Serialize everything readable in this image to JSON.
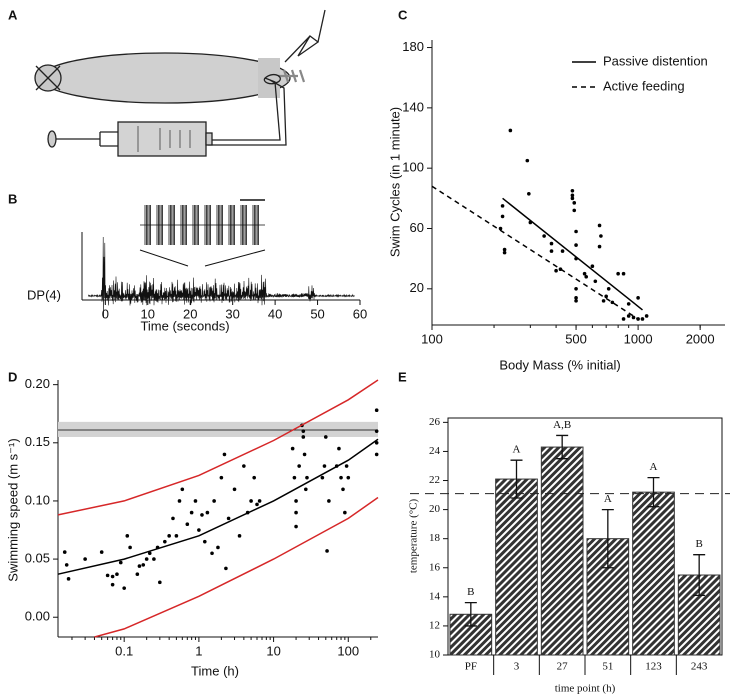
{
  "diagram": {
    "panel": "A"
  },
  "chart_data": [
    {
      "panel": "B",
      "type": "trace",
      "ylabel": "DP(4)",
      "xlabel": "Time (seconds)",
      "xlim": [
        -5.5,
        60
      ],
      "xticks": [
        0,
        10,
        20,
        30,
        40,
        50,
        60
      ]
    },
    {
      "panel": "C",
      "type": "scatter",
      "xscale": "log",
      "xlabel": "Body Mass (% initial)",
      "ylabel": "Swim Cycles (in 1 minute)",
      "xlim": [
        100,
        2640
      ],
      "xticks": [
        100,
        500,
        1000,
        2000
      ],
      "ylim": [
        -4,
        185
      ],
      "yticks": [
        20,
        60,
        100,
        140,
        180
      ],
      "legend": "upper right",
      "series": [
        {
          "kind": "points",
          "color": "#000000",
          "x": [
            240,
            220,
            215,
            225,
            225,
            290,
            295,
            300,
            350,
            380,
            380,
            400,
            420,
            430,
            480,
            480,
            480,
            490,
            490,
            500,
            500,
            500,
            500,
            500,
            500,
            550,
            560,
            600,
            620,
            650,
            660,
            650,
            680,
            700,
            720,
            750,
            800,
            850,
            900,
            900,
            950,
            1000,
            1050,
            1100,
            1000,
            850,
            220
          ],
          "values": [
            125,
            75,
            60,
            46,
            44,
            105,
            83,
            64,
            55,
            50,
            45,
            32,
            33,
            45,
            85,
            82,
            80,
            77,
            72,
            58,
            49,
            40,
            20,
            14,
            12,
            30,
            28,
            35,
            25,
            62,
            55,
            48,
            12,
            15,
            20,
            11,
            30,
            30,
            10,
            2,
            1,
            0,
            0,
            2,
            14,
            0,
            68
          ]
        },
        {
          "kind": "line",
          "name": "Passive distention",
          "color": "#000000",
          "dash": false,
          "x": [
            220,
            1050
          ],
          "values": [
            80,
            6
          ]
        },
        {
          "kind": "line",
          "name": "Active feeding",
          "color": "#000000",
          "dash": true,
          "x": [
            100,
            1000
          ],
          "values": [
            88,
            0
          ]
        }
      ]
    },
    {
      "panel": "D",
      "type": "scatter",
      "xscale": "log",
      "xlabel": "Time (h)",
      "ylabel": "Swimming speed (m s⁻¹)",
      "xlim": [
        0.013,
        250
      ],
      "xticks": [
        0.1,
        1,
        10,
        100
      ],
      "ylim": [
        -0.017,
        0.204
      ],
      "yticks": [
        {
          "value": 0,
          "label": "0.00"
        },
        {
          "value": 0.05,
          "label": "0.05"
        },
        {
          "value": 0.1,
          "label": "0.10"
        },
        {
          "value": 0.15,
          "label": "0.15"
        },
        {
          "value": 0.2,
          "label": "0.20"
        }
      ],
      "band": [
        0.155,
        0.168
      ],
      "band_color": "#d3d3d3",
      "reference": 0.161,
      "series": [
        {
          "kind": "points",
          "color": "#000000",
          "x": [
            0.016,
            0.017,
            0.018,
            0.03,
            0.05,
            0.06,
            0.07,
            0.07,
            0.08,
            0.09,
            0.1,
            0.11,
            0.12,
            0.15,
            0.16,
            0.18,
            0.2,
            0.22,
            0.25,
            0.28,
            0.3,
            0.35,
            0.4,
            0.45,
            0.5,
            0.55,
            0.6,
            0.7,
            0.8,
            0.9,
            1,
            1.1,
            1.2,
            1.3,
            1.5,
            1.6,
            1.8,
            2,
            2.2,
            2.3,
            2.5,
            3,
            3.5,
            4,
            4.5,
            5,
            5.5,
            6,
            6.5,
            18,
            19,
            20,
            20,
            20,
            22,
            24,
            25,
            25,
            26,
            27,
            28,
            45,
            48,
            50,
            52,
            55,
            70,
            75,
            80,
            85,
            90,
            95,
            100,
            240,
            240,
            240,
            240
          ],
          "values": [
            0.056,
            0.045,
            0.033,
            0.05,
            0.056,
            0.036,
            0.035,
            0.028,
            0.037,
            0.047,
            0.025,
            0.07,
            0.06,
            0.037,
            0.044,
            0.045,
            0.05,
            0.055,
            0.05,
            0.06,
            0.03,
            0.065,
            0.07,
            0.085,
            0.07,
            0.1,
            0.11,
            0.08,
            0.09,
            0.1,
            0.075,
            0.088,
            0.065,
            0.09,
            0.055,
            0.1,
            0.06,
            0.12,
            0.14,
            0.042,
            0.085,
            0.11,
            0.07,
            0.13,
            0.09,
            0.1,
            0.12,
            0.097,
            0.1,
            0.145,
            0.12,
            0.09,
            0.078,
            0.1,
            0.13,
            0.165,
            0.16,
            0.155,
            0.14,
            0.11,
            0.12,
            0.12,
            0.13,
            0.155,
            0.057,
            0.1,
            0.13,
            0.145,
            0.12,
            0.11,
            0.09,
            0.13,
            0.12,
            0.178,
            0.16,
            0.15,
            0.14
          ]
        },
        {
          "kind": "line",
          "color": "#000000",
          "dash": false,
          "x": [
            0.013,
            0.1,
            1,
            10,
            100,
            250
          ],
          "values": [
            0.037,
            0.05,
            0.07,
            0.1,
            0.135,
            0.153
          ]
        },
        {
          "kind": "line",
          "color": "#d62728",
          "dash": false,
          "x": [
            0.013,
            0.1,
            1,
            10,
            100,
            250
          ],
          "values": [
            0.088,
            0.1,
            0.122,
            0.152,
            0.187,
            0.204
          ]
        },
        {
          "kind": "line",
          "color": "#d62728",
          "dash": false,
          "x": [
            0.04,
            0.1,
            1,
            10,
            100,
            250
          ],
          "values": [
            -0.017,
            -0.01,
            0.018,
            0.05,
            0.085,
            0.103
          ]
        }
      ]
    },
    {
      "panel": "E",
      "type": "bar",
      "xlabel": "time point (h)",
      "ylabel": "temperature (°C)",
      "categories": [
        "PF",
        "3",
        "27",
        "51",
        "123",
        "243"
      ],
      "values": [
        12.8,
        22.1,
        24.3,
        18.0,
        21.2,
        15.5
      ],
      "errors": [
        0.8,
        1.3,
        0.8,
        2.0,
        1.0,
        1.4
      ],
      "letters": [
        "B",
        "A",
        "A,B",
        "A",
        "A",
        "B"
      ],
      "color": "#333333",
      "ylim": [
        10,
        26.3
      ],
      "yticks": [
        10,
        12,
        14,
        16,
        18,
        20,
        22,
        24,
        26
      ],
      "reference": 21.1
    }
  ]
}
